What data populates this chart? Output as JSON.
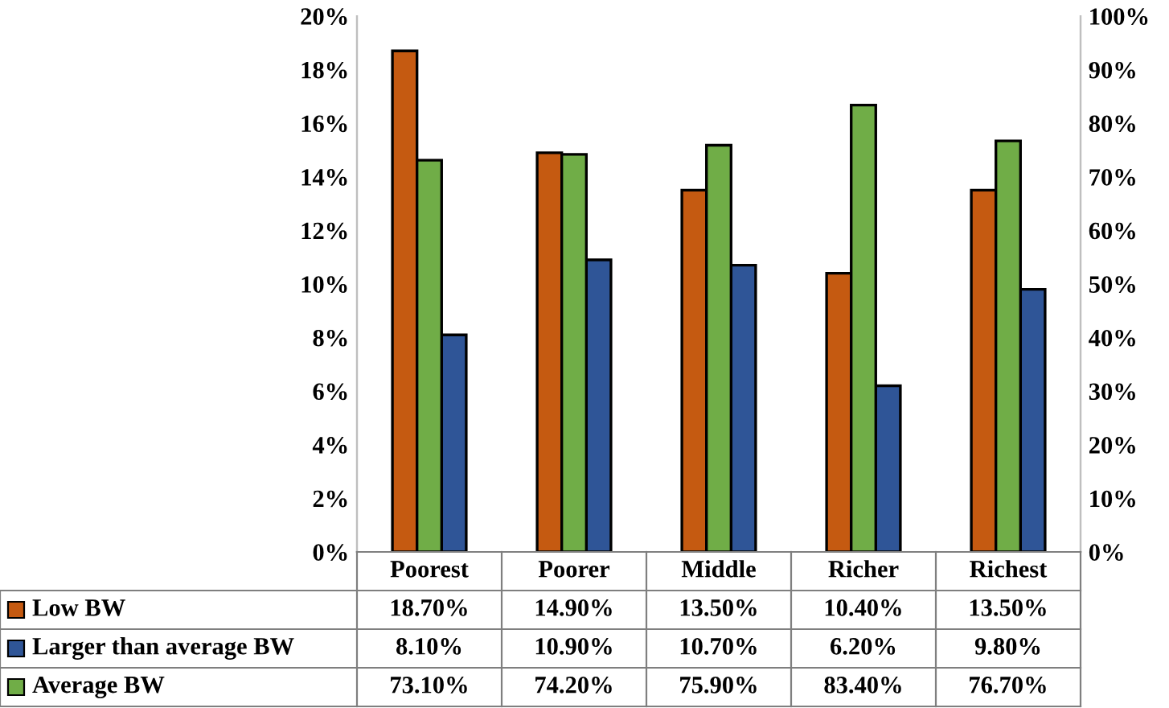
{
  "chart_data": {
    "type": "bar",
    "categories": [
      "Poorest",
      "Poorer",
      "Middle",
      "Richer",
      "Richest"
    ],
    "series": [
      {
        "name": "Low BW",
        "color": "#c55a11",
        "values": [
          18.7,
          14.9,
          13.5,
          10.4,
          13.5
        ],
        "value_labels": [
          "18.70%",
          "14.90%",
          "13.50%",
          "10.40%",
          "13.50%"
        ]
      },
      {
        "name": "Larger than average BW",
        "color": "#2f5597",
        "values": [
          8.1,
          10.9,
          10.7,
          6.2,
          9.8
        ],
        "value_labels": [
          "8.10%",
          "10.90%",
          "10.70%",
          "6.20%",
          "9.80%"
        ]
      },
      {
        "name": "Average BW",
        "color": "#70ad47",
        "axis": "y2",
        "values": [
          73.1,
          74.2,
          75.9,
          83.4,
          76.7
        ],
        "value_labels": [
          "73.10%",
          "74.20%",
          "75.90%",
          "83.40%",
          "76.70%"
        ]
      }
    ],
    "ylim": [
      0,
      20
    ],
    "yticks": [
      {
        "value": 0,
        "label": "0%"
      },
      {
        "value": 2,
        "label": "2%"
      },
      {
        "value": 4,
        "label": "4%"
      },
      {
        "value": 6,
        "label": "6%"
      },
      {
        "value": 8,
        "label": "8%"
      },
      {
        "value": 10,
        "label": "10%"
      },
      {
        "value": 12,
        "label": "12%"
      },
      {
        "value": 14,
        "label": "14%"
      },
      {
        "value": 16,
        "label": "16%"
      },
      {
        "value": 18,
        "label": "18%"
      },
      {
        "value": 20,
        "label": "20%"
      }
    ],
    "y2lim": [
      0,
      100
    ],
    "y2ticks": [
      {
        "value": 0,
        "label": "0%"
      },
      {
        "value": 10,
        "label": "10%"
      },
      {
        "value": 20,
        "label": "20%"
      },
      {
        "value": 30,
        "label": "30%"
      },
      {
        "value": 40,
        "label": "40%"
      },
      {
        "value": 50,
        "label": "50%"
      },
      {
        "value": 60,
        "label": "60%"
      },
      {
        "value": 70,
        "label": "70%"
      },
      {
        "value": 80,
        "label": "80%"
      },
      {
        "value": 90,
        "label": "90%"
      },
      {
        "value": 100,
        "label": "100%"
      }
    ],
    "grid": false,
    "legend": "bottom"
  }
}
